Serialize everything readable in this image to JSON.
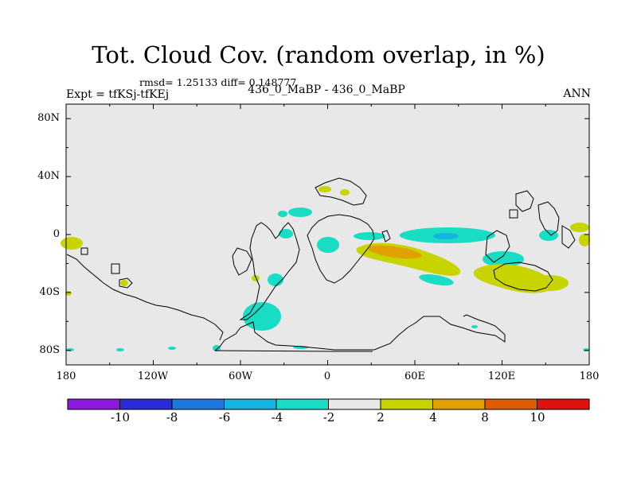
{
  "title": "Tot. Cloud Cov. (random overlap, in %)",
  "stats": "rmsd= 1.25133 diff= 0.148777",
  "experiment": "Expt = tfKSj-tfKEj",
  "case_label": "436_0_MaBP - 436_0_MaBP",
  "season": "ANN",
  "map": {
    "projection": "cylindrical equidistant",
    "lon_range": [
      -180,
      180
    ],
    "lat_range": [
      -90,
      90
    ],
    "background_color": "#e8e8e8",
    "lat_ticks": [
      {
        "lat": 80,
        "label": "80N"
      },
      {
        "lat": 40,
        "label": "40N"
      },
      {
        "lat": 0,
        "label": "0"
      },
      {
        "lat": -40,
        "label": "40S"
      },
      {
        "lat": -80,
        "label": "80S"
      }
    ],
    "lon_ticks": [
      {
        "lon": -180,
        "label": "180"
      },
      {
        "lon": -120,
        "label": "120W"
      },
      {
        "lon": -60,
        "label": "60W"
      },
      {
        "lon": 0,
        "label": "0"
      },
      {
        "lon": 60,
        "label": "60E"
      },
      {
        "lon": 120,
        "label": "120E"
      },
      {
        "lon": 180,
        "label": "180"
      }
    ]
  },
  "colorbar": {
    "bins": [
      {
        "color": "#8a1ae0"
      },
      {
        "color": "#2a2ad8"
      },
      {
        "color": "#1a78e0"
      },
      {
        "color": "#14b4e0"
      },
      {
        "color": "#18dcc4"
      },
      {
        "color": "#e8e8e8"
      },
      {
        "color": "#c8d400"
      },
      {
        "color": "#e0a000"
      },
      {
        "color": "#e05a00"
      },
      {
        "color": "#e01010"
      }
    ],
    "labels": [
      "-10",
      "-8",
      "-6",
      "-4",
      "-2",
      "2",
      "4",
      "8",
      "10"
    ]
  }
}
